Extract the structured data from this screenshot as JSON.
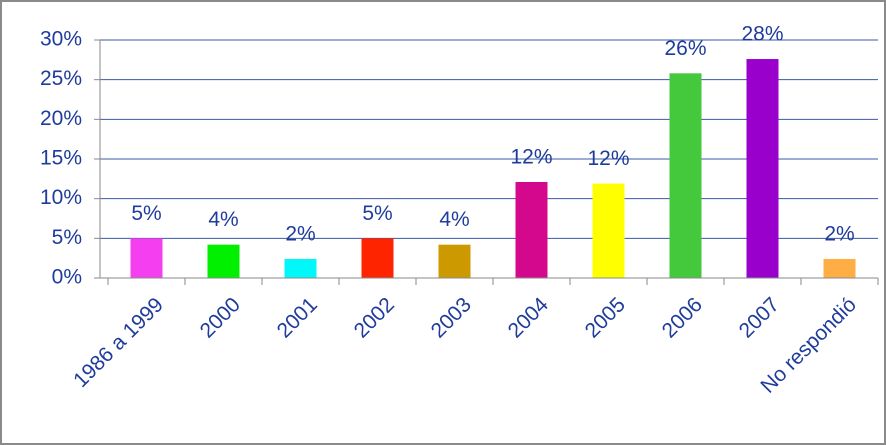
{
  "chart_data": {
    "type": "bar",
    "categories": [
      "1986 a 1999",
      "2000",
      "2001",
      "2002",
      "2003",
      "2004",
      "2005",
      "2006",
      "2007",
      "No respondió"
    ],
    "values": [
      5,
      4.2,
      2.4,
      5,
      4.2,
      12.1,
      11.9,
      25.8,
      27.6,
      2.4
    ],
    "value_labels": [
      "5%",
      "4%",
      "2%",
      "5%",
      "4%",
      "12%",
      "12%",
      "26%",
      "28%",
      "2%"
    ],
    "colors": [
      "#f43ef0",
      "#00f000",
      "#00f8f8",
      "#ff2400",
      "#cc9900",
      "#d4088c",
      "#ffff00",
      "#44c83c",
      "#9900cc",
      "#ffad45"
    ],
    "ylim": [
      0,
      30
    ],
    "yticks": [
      {
        "value": 0,
        "label": "0%"
      },
      {
        "value": 5,
        "label": "5%"
      },
      {
        "value": 10,
        "label": "10%"
      },
      {
        "value": 15,
        "label": "15%"
      },
      {
        "value": 20,
        "label": "20%"
      },
      {
        "value": 25,
        "label": "25%"
      },
      {
        "value": 30,
        "label": "30%"
      }
    ],
    "grid": true
  }
}
